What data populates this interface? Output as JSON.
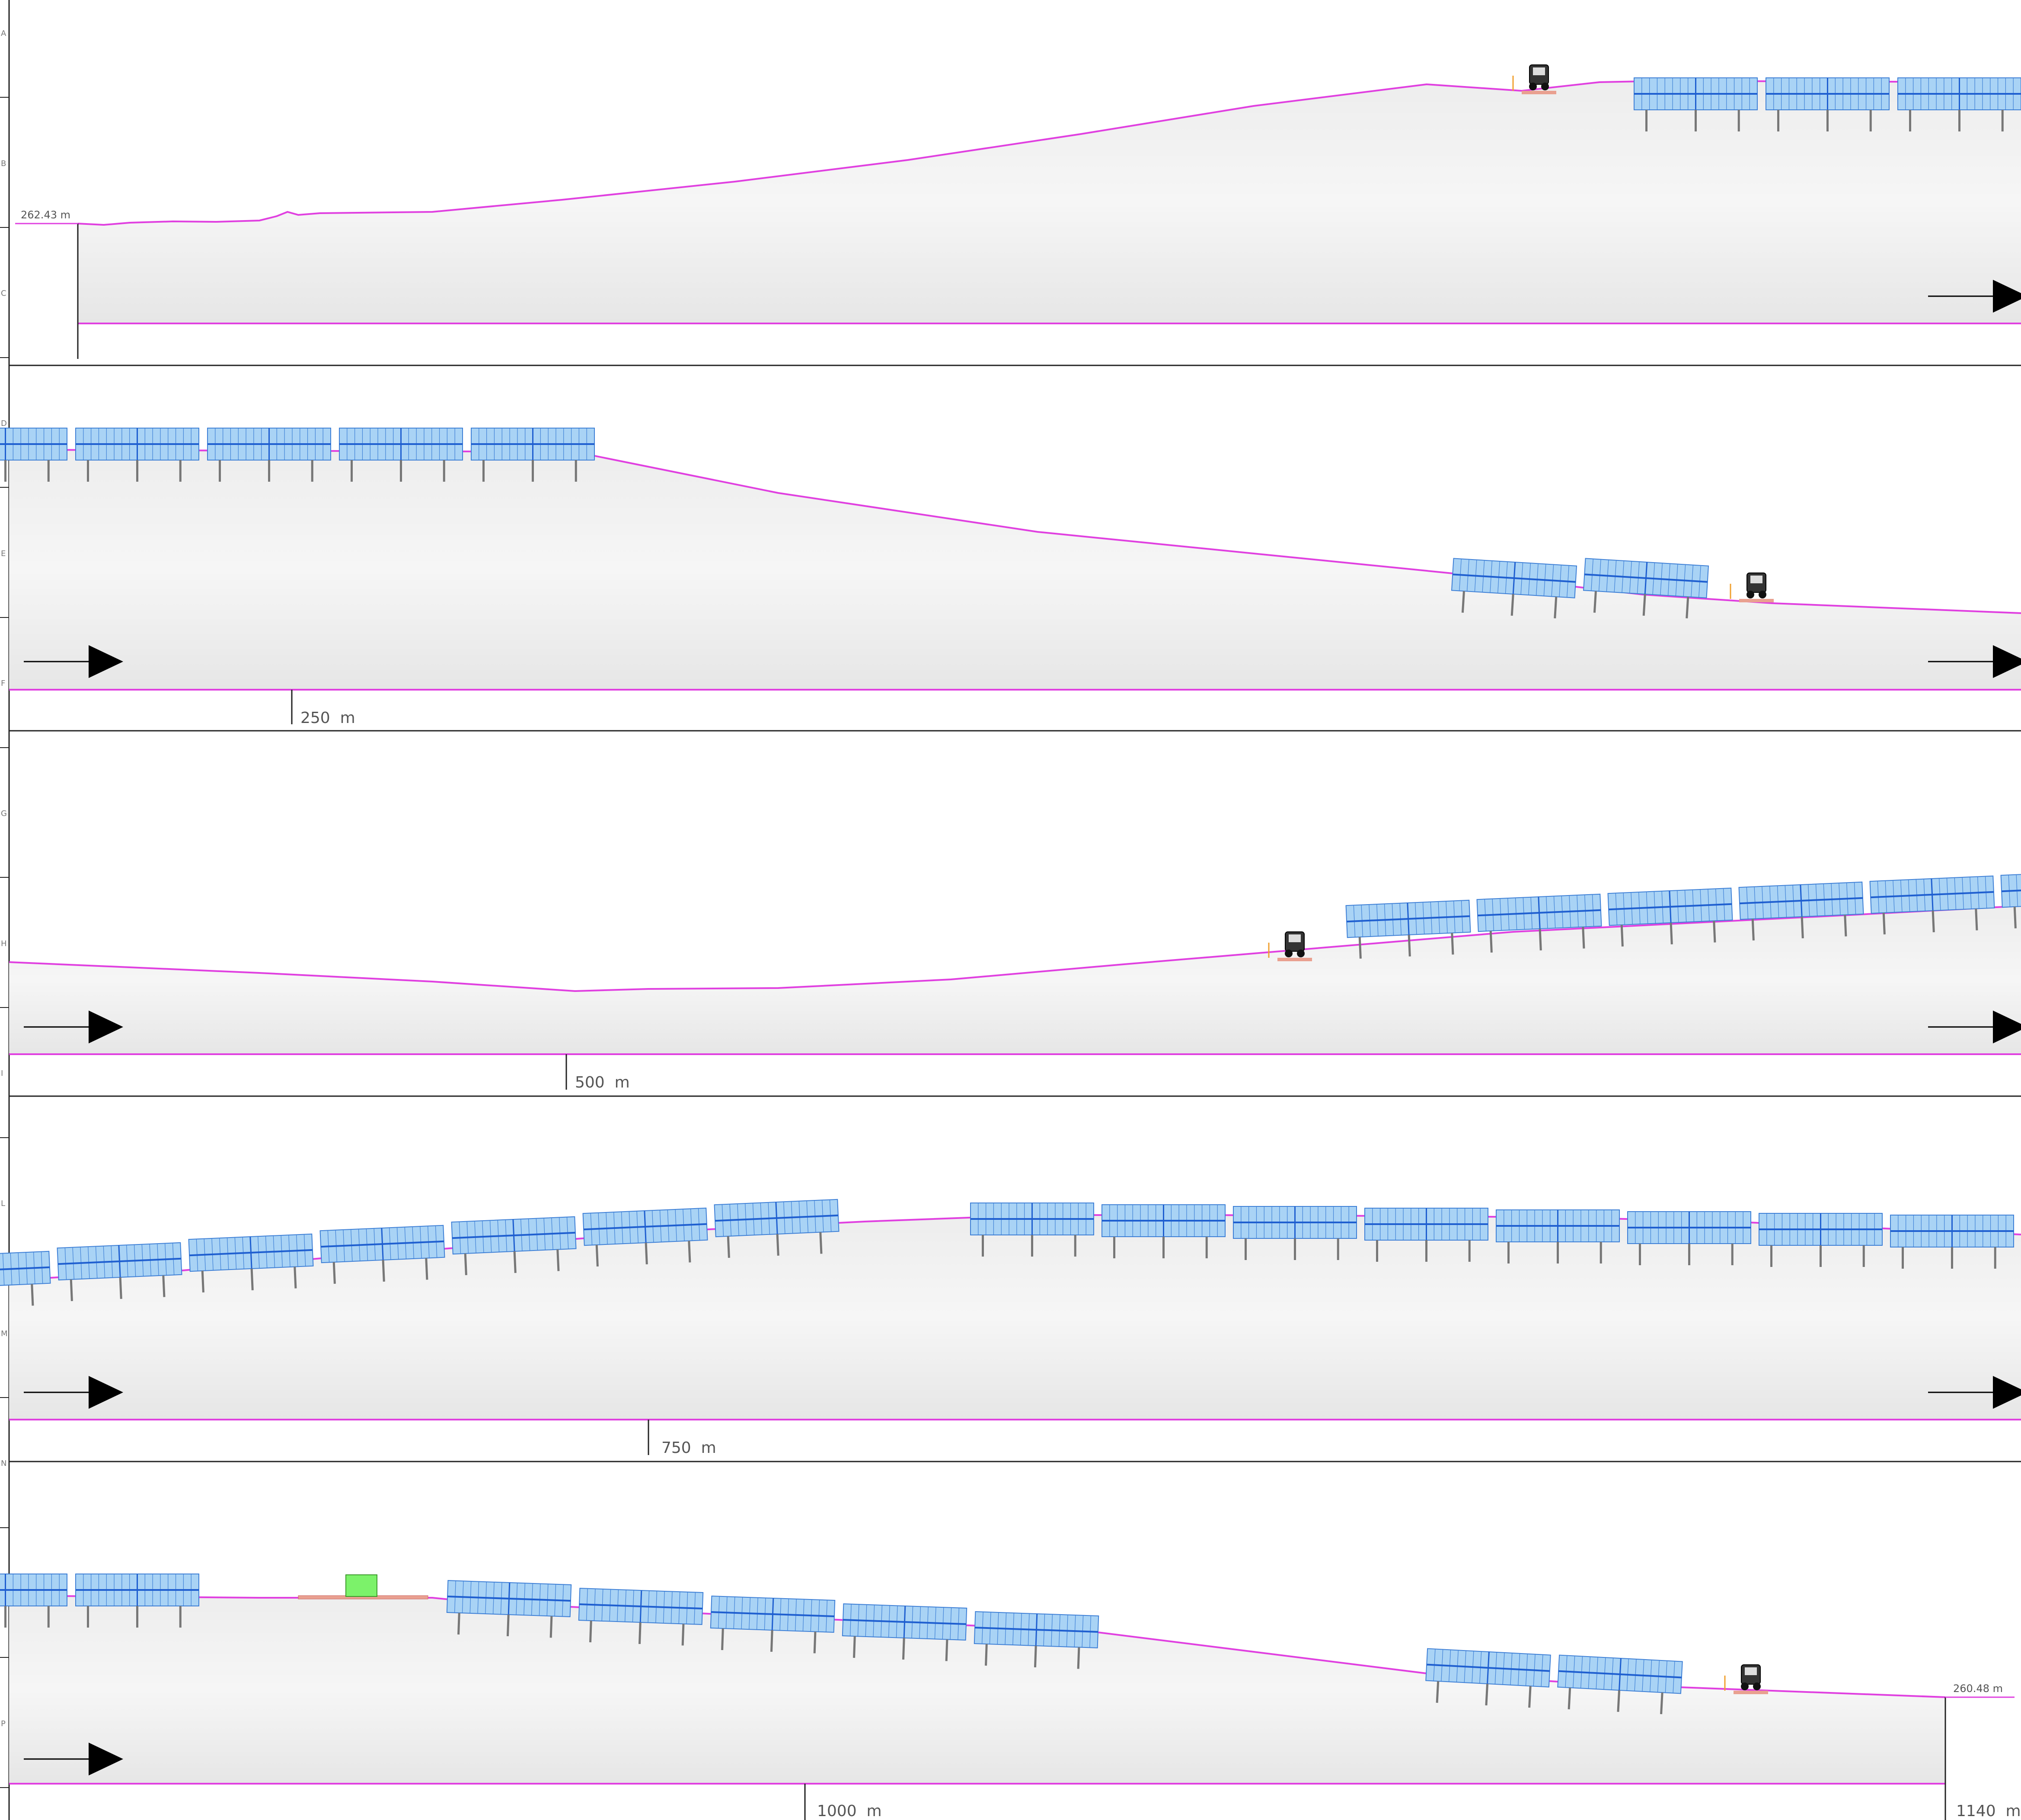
{
  "colors": {
    "terrain_line": "#e040e0",
    "terrain_fill": "#e9e9e9",
    "panel_fill": "#a9d3f5",
    "panel_stroke": "#3d7fd6",
    "panel_axis": "#1f5fd0",
    "post": "#777777",
    "frame": "#222222",
    "text": "#555555",
    "arrow": "#000000",
    "inverter": "#7cf26a"
  },
  "elevations": {
    "start": "262.43 m",
    "end": "260.48 m"
  },
  "side_markers": [
    "A",
    "B",
    "C",
    "D",
    "E",
    "F",
    "G",
    "H",
    "I",
    "L",
    "M",
    "N",
    "O",
    "P"
  ],
  "strips": [
    {
      "id": "strip-1",
      "arrow_left": false,
      "arrow_right": true,
      "distance_label": "",
      "start_elevation": true,
      "icons": [
        "vehicle-icon"
      ]
    },
    {
      "id": "strip-2",
      "arrow_left": true,
      "arrow_right": true,
      "distance_label": "250  m",
      "icons": [
        "vehicle-icon"
      ]
    },
    {
      "id": "strip-3",
      "arrow_left": true,
      "arrow_right": true,
      "distance_label": "500  m",
      "icons": [
        "vehicle-icon"
      ]
    },
    {
      "id": "strip-4",
      "arrow_left": true,
      "arrow_right": true,
      "distance_label": "750  m",
      "icons": []
    },
    {
      "id": "strip-5",
      "arrow_left": true,
      "arrow_right": false,
      "distance_label": "1000  m",
      "end_label": "1140  m",
      "end_elevation": true,
      "icons": [
        "vehicle-icon",
        "inverter-cabin-icon"
      ]
    }
  ]
}
